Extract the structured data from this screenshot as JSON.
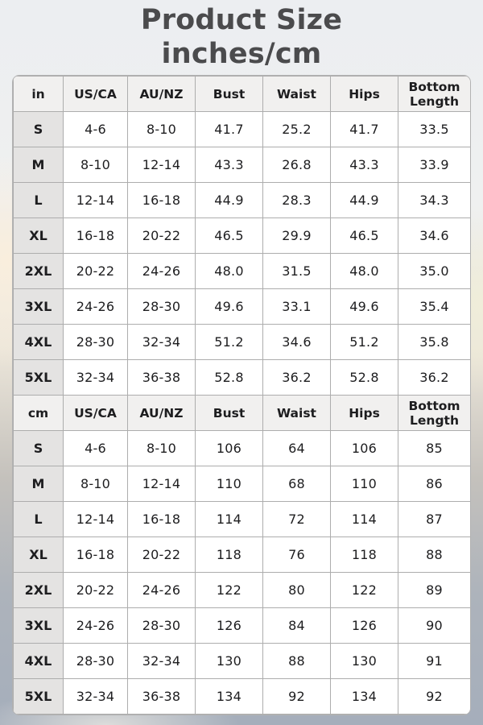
{
  "title": {
    "line1": "Product Size",
    "line2": "inches/cm"
  },
  "size_table": {
    "sections": [
      {
        "unit": "in",
        "headers": [
          "in",
          "US/CA",
          "AU/NZ",
          "Bust",
          "Waist",
          "Hips",
          "Bottom Length"
        ],
        "rows": [
          {
            "size": "S",
            "values": [
              "4-6",
              "8-10",
              "41.7",
              "25.2",
              "41.7",
              "33.5"
            ]
          },
          {
            "size": "M",
            "values": [
              "8-10",
              "12-14",
              "43.3",
              "26.8",
              "43.3",
              "33.9"
            ]
          },
          {
            "size": "L",
            "values": [
              "12-14",
              "16-18",
              "44.9",
              "28.3",
              "44.9",
              "34.3"
            ]
          },
          {
            "size": "XL",
            "values": [
              "16-18",
              "20-22",
              "46.5",
              "29.9",
              "46.5",
              "34.6"
            ]
          },
          {
            "size": "2XL",
            "values": [
              "20-22",
              "24-26",
              "48.0",
              "31.5",
              "48.0",
              "35.0"
            ]
          },
          {
            "size": "3XL",
            "values": [
              "24-26",
              "28-30",
              "49.6",
              "33.1",
              "49.6",
              "35.4"
            ]
          },
          {
            "size": "4XL",
            "values": [
              "28-30",
              "32-34",
              "51.2",
              "34.6",
              "51.2",
              "35.8"
            ]
          },
          {
            "size": "5XL",
            "values": [
              "32-34",
              "36-38",
              "52.8",
              "36.2",
              "52.8",
              "36.2"
            ]
          }
        ]
      },
      {
        "unit": "cm",
        "headers": [
          "cm",
          "US/CA",
          "AU/NZ",
          "Bust",
          "Waist",
          "Hips",
          "Bottom Length"
        ],
        "rows": [
          {
            "size": "S",
            "values": [
              "4-6",
              "8-10",
              "106",
              "64",
              "106",
              "85"
            ]
          },
          {
            "size": "M",
            "values": [
              "8-10",
              "12-14",
              "110",
              "68",
              "110",
              "86"
            ]
          },
          {
            "size": "L",
            "values": [
              "12-14",
              "16-18",
              "114",
              "72",
              "114",
              "87"
            ]
          },
          {
            "size": "XL",
            "values": [
              "16-18",
              "20-22",
              "118",
              "76",
              "118",
              "88"
            ]
          },
          {
            "size": "2XL",
            "values": [
              "20-22",
              "24-26",
              "122",
              "80",
              "122",
              "89"
            ]
          },
          {
            "size": "3XL",
            "values": [
              "24-26",
              "28-30",
              "126",
              "84",
              "126",
              "90"
            ]
          },
          {
            "size": "4XL",
            "values": [
              "28-30",
              "32-34",
              "130",
              "88",
              "130",
              "91"
            ]
          },
          {
            "size": "5XL",
            "values": [
              "32-34",
              "36-38",
              "134",
              "92",
              "134",
              "92"
            ]
          }
        ]
      }
    ]
  },
  "colors": {
    "title_text": "#4b4b4d",
    "cell_text": "#1d1d1f",
    "header_row_bg": "#f1f0ef",
    "size_column_bg": "#e4e3e2",
    "cell_bg": "#ffffff",
    "grid_border": "#adadad"
  }
}
